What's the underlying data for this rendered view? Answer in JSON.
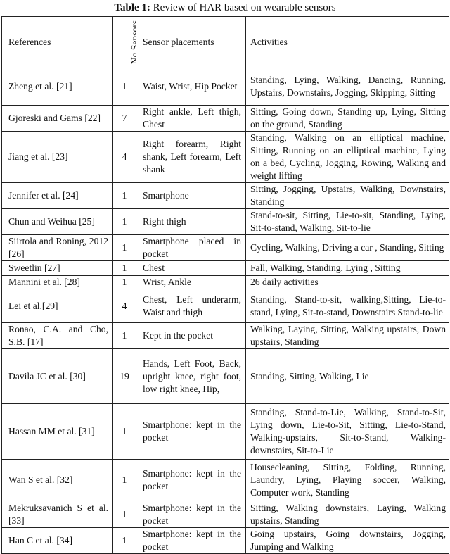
{
  "caption": {
    "label": "Table 1:",
    "text": "Review of HAR based on wearable sensors"
  },
  "headers": [
    "References",
    "No.Sensors",
    "Sensor placements",
    "Activities"
  ],
  "rows": [
    {
      "ref": "Zheng et al. [21]",
      "n": "1",
      "place": "Waist, Wrist, Hip Pocket",
      "act": "Standing, Lying, Walking, Dancing, Running, Upstairs, Downstairs, Jogging, Skipping, Sitting"
    },
    {
      "ref": "Gjoreski and Gams [22]",
      "n": "7",
      "place": "Right ankle, Left thigh, Chest",
      "act": "Sitting, Going down, Standing up, Lying, Sitting on the ground, Standing"
    },
    {
      "ref": "Jiang et al. [23]",
      "n": "4",
      "place": "Right forearm, Right shank, Left forearm, Left shank",
      "act": "Standing, Walking on an elliptical machine, Sitting, Running on an elliptical machine, Lying on a bed, Cycling, Jogging, Rowing, Walking and weight lifting"
    },
    {
      "ref": "Jennifer et al. [24]",
      "n": "1",
      "place": "Smartphone",
      "act": "Sitting, Jogging, Upstairs, Walking, Downstairs, Standing"
    },
    {
      "ref": "Chun and Weihua [25]",
      "n": "1",
      "place": "Right thigh",
      "act": "Stand-to-sit, Sitting, Lie-to-sit, Standing, Lying, Sit-to-stand, Walking, Sit-to-lie"
    },
    {
      "ref": "Siirtola and Roning, 2012 [26]",
      "n": "1",
      "place": "Smartphone placed in pocket",
      "act": "Cycling, Walking, Driving a car , Standing, Sitting"
    },
    {
      "ref": "Sweetlin [27]",
      "n": "1",
      "place": "Chest",
      "act": "Fall, Walking, Standing, Lying , Sitting"
    },
    {
      "ref": "Mannini et al. [28]",
      "n": "1",
      "place": "Wrist, Ankle",
      "act": "26 daily activities"
    },
    {
      "ref": "Lei et al.[29]",
      "n": "4",
      "place": "Chest, Left underarm, Waist and thigh",
      "act": "Standing, Stand-to-sit, walking,Sitting, Lie-to-stand, Lying, Sit-to-stand, Downstairs Stand-to-lie"
    },
    {
      "ref": "Ronao, C.A. and Cho, S.B. [17]",
      "n": "1",
      "place": "Kept in the pocket",
      "act": "Walking, Laying, Sitting, Walking upstairs, Down upstairs, Standing"
    },
    {
      "ref": "Davila JC et al. [30]",
      "n": "19",
      "place": "Hands, Left Foot, Back, upright knee, right foot, low right knee, Hip,",
      "act": "Standing, Sitting, Walking, Lie"
    },
    {
      "ref": "Hassan MM et al. [31]",
      "n": "1",
      "place": "Smartphone: kept in the pocket",
      "act": "Standing, Stand-to-Lie, Walking, Stand-to-Sit, Lying down, Lie-to-Sit, Sitting, Lie-to-Stand, Walking-upstairs, Sit-to-Stand, Walking-downstairs, Sit-to-Lie"
    },
    {
      "ref": "Wan S et al. [32]",
      "n": "1",
      "place": "Smartphone: kept in the pocket",
      "act": "Housecleaning, Sitting, Folding, Running, Laundry, Lying, Playing soccer, Walking, Computer work, Standing"
    },
    {
      "ref": "Mekruksavanich S et al. [33]",
      "n": "1",
      "place": "Smartphone: kept in the pocket",
      "act": "Sitting, Walking downstairs, Laying, Walking upstairs, Standing"
    },
    {
      "ref": "Han C et al. [34]",
      "n": "1",
      "place": "Smartphone: kept in the pocket",
      "act": "Going upstairs, Going downstairs, Jogging, Jumping and Walking"
    }
  ]
}
